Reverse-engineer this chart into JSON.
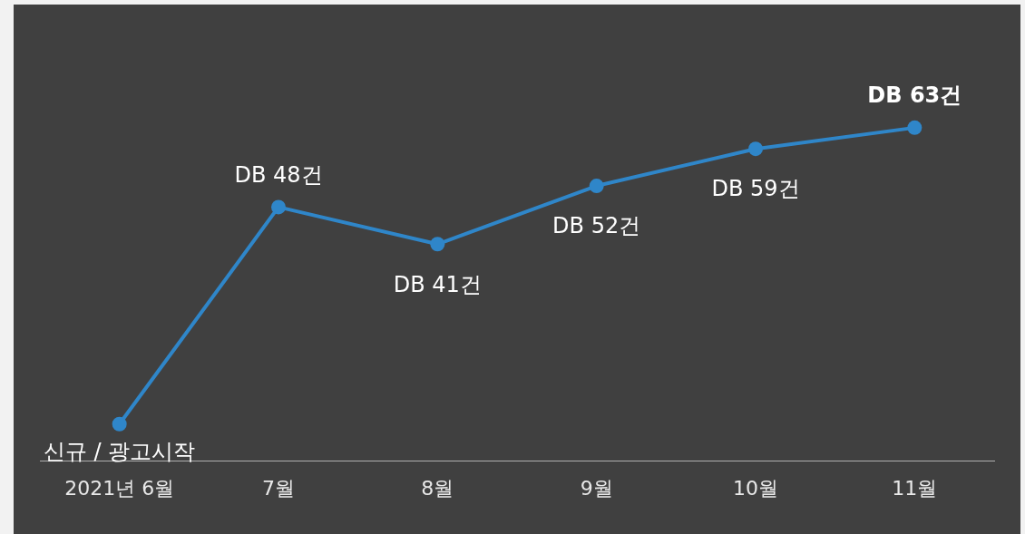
{
  "chart_data": {
    "type": "line",
    "categories": [
      "2021년 6월",
      "7월",
      "8월",
      "9월",
      "10월",
      "11월"
    ],
    "values": [
      7,
      48,
      41,
      52,
      59,
      63
    ],
    "value_labels": [
      "신규 / 광고시작",
      "DB 48건",
      "DB 41건",
      "DB 52건",
      "DB 59건",
      "DB 63건"
    ],
    "color": "#2f86c9",
    "marker": "circle",
    "line_style": "solid",
    "tick_labels": "x",
    "grid": false,
    "legend": false
  }
}
